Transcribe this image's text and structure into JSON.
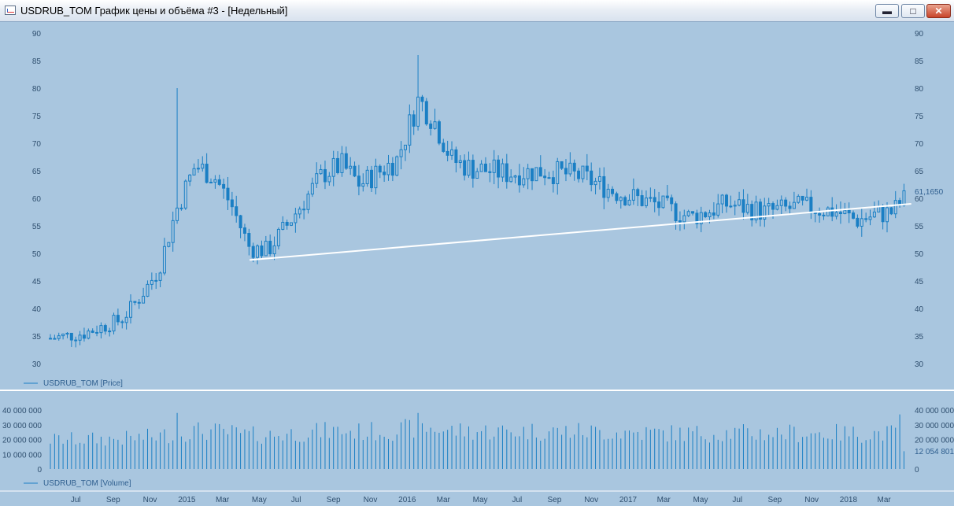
{
  "window": {
    "title": "USDRUB_TOM График цены и объёма #3 - [Недельный]",
    "buttons": {
      "minimize_icon": "minimize-icon",
      "maximize_icon": "maximize-icon",
      "close_icon": "close-icon"
    }
  },
  "colors": {
    "background": "#a9c6df",
    "candle": "#1a7fc4",
    "trendline": "#ffffff",
    "separator": "#ffffff"
  },
  "price_panel": {
    "legend": "USDRUB_TOM [Price]",
    "y_ticks": [
      "90",
      "85",
      "80",
      "75",
      "70",
      "65",
      "60",
      "55",
      "50",
      "45",
      "40",
      "35",
      "30"
    ],
    "last_value": "61,1650"
  },
  "volume_panel": {
    "legend": "USDRUB_TOM [Volume]",
    "y_ticks_left": [
      "40 000 000",
      "30 000 000",
      "20 000 000",
      "10 000 000",
      "0"
    ],
    "y_ticks_right": [
      "40 000 000",
      "30 000 000",
      "20 000 000",
      "0"
    ],
    "last_value": "12 054 801"
  },
  "x_axis": {
    "labels": [
      "Jul",
      "Sep",
      "Nov",
      "2015",
      "Mar",
      "May",
      "Jul",
      "Sep",
      "Nov",
      "2016",
      "Mar",
      "May",
      "Jul",
      "Sep",
      "Nov",
      "2017",
      "Mar",
      "May",
      "Jul",
      "Sep",
      "Nov",
      "2018",
      "Mar"
    ]
  },
  "chart_data": {
    "type": "candlestick",
    "series": [
      {
        "name": "USDRUB_TOM [Price]",
        "x": [
          "2014-05",
          "2014-07",
          "2014-09",
          "2014-10",
          "2014-11",
          "2014-12-15",
          "2015-01",
          "2015-02",
          "2015-03",
          "2015-04",
          "2015-05",
          "2015-06",
          "2015-08",
          "2015-09",
          "2015-10",
          "2015-12",
          "2016-01-20",
          "2016-02",
          "2016-03",
          "2016-04",
          "2016-06",
          "2016-08",
          "2016-10",
          "2016-12",
          "2017-02",
          "2017-04",
          "2017-06",
          "2017-08",
          "2017-10",
          "2017-12",
          "2018-01",
          "2018-02",
          "2018-03",
          "2018-04"
        ],
        "close": [
          34.5,
          35.5,
          38.0,
          42.0,
          47.0,
          58.0,
          66.0,
          64.0,
          59.0,
          51.0,
          50.5,
          55.0,
          64.5,
          66.0,
          62.5,
          67.0,
          78.0,
          74.0,
          67.0,
          65.5,
          64.5,
          65.0,
          64.0,
          61.0,
          59.0,
          56.5,
          59.0,
          57.5,
          58.5,
          57.5,
          56.0,
          57.0,
          57.5,
          61.2
        ]
      }
    ],
    "peaks": {
      "2014-12-15": 80.0,
      "2016-01-20": 86.0
    },
    "trendline": [
      {
        "x": "2015-04",
        "y": 48.8
      },
      {
        "x": "2018-04",
        "y": 59.0
      }
    ],
    "ylim": [
      30,
      90
    ],
    "volume_ylim": [
      0,
      40000000
    ]
  }
}
